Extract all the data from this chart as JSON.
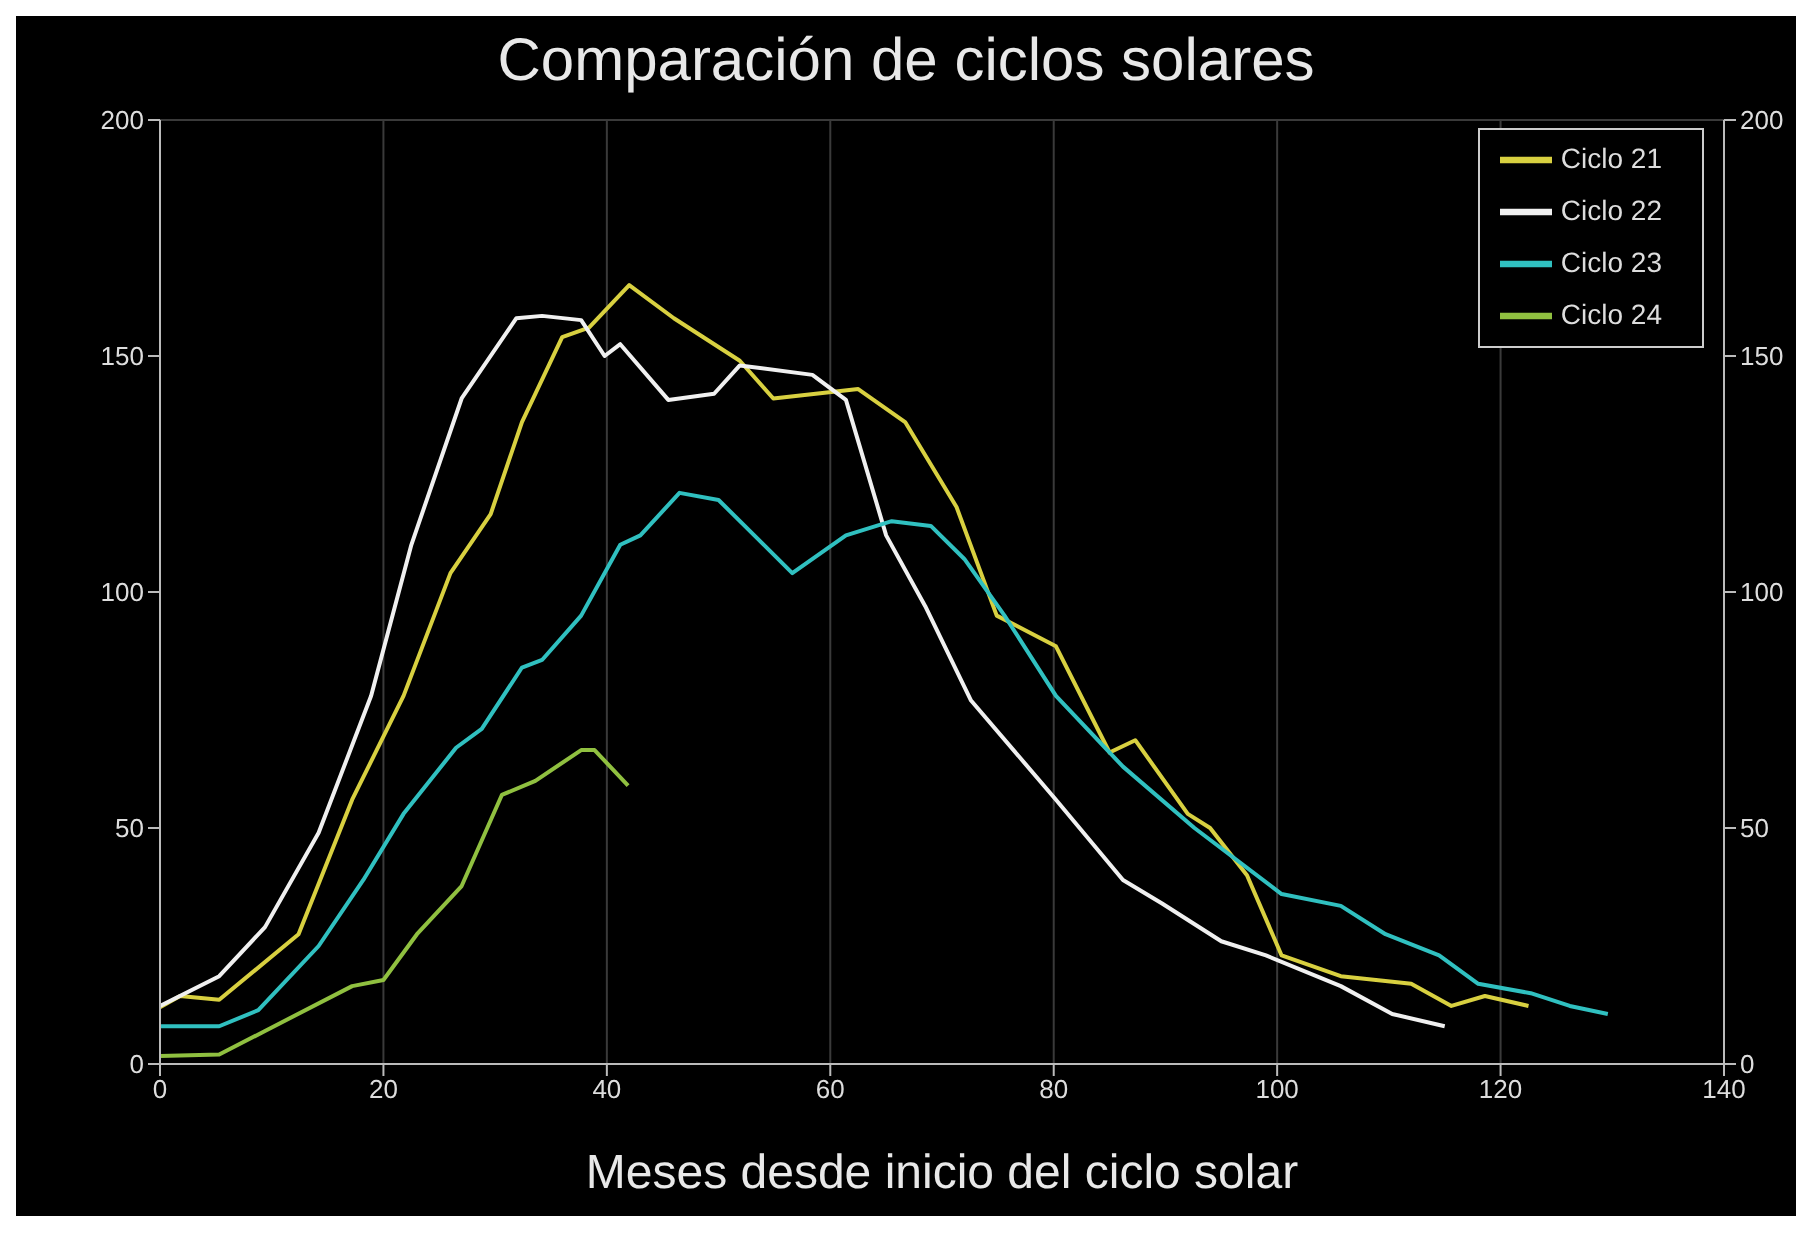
{
  "chart_data": {
    "type": "line",
    "title": "Comparación de ciclos solares",
    "xlabel": "Meses desde inicio del ciclo solar",
    "xlim": [
      0,
      140
    ],
    "xticks": [
      0,
      20,
      40,
      60,
      80,
      100,
      120,
      140
    ],
    "ylim": [
      0,
      200
    ],
    "yticks": [
      0,
      50,
      100,
      150,
      200
    ],
    "y2lim": [
      0,
      200
    ],
    "y2ticks": [
      0,
      50,
      100,
      150,
      200
    ],
    "grid": true,
    "legend": "top right",
    "marker": "none",
    "line_style": "solid",
    "series": [
      {
        "name": "Ciclo 21",
        "color": "#d8d040",
        "x": [
          0,
          1.8,
          5.3,
          12.4,
          17.2,
          21.8,
          26,
          29.6,
          32.4,
          36,
          38.4,
          42,
          46,
          51.9,
          54.9,
          62.5,
          66.7,
          71.3,
          74.9,
          80.2,
          85,
          87.3,
          92,
          94,
          97.3,
          100.4,
          105.7,
          112,
          115.6,
          118.6,
          122.5
        ],
        "values": [
          12,
          14.4,
          13.6,
          27.5,
          56,
          78,
          104,
          116.5,
          136,
          154,
          156,
          165,
          158,
          149,
          141,
          143,
          136,
          118,
          95,
          88.5,
          66,
          68.6,
          53,
          50,
          40,
          23,
          18.6,
          17,
          12.3,
          14.4,
          12.3
        ]
      },
      {
        "name": "Ciclo 22",
        "color": "#f0f0f0",
        "x": [
          0,
          5.3,
          9.4,
          14.2,
          18.9,
          22.5,
          27,
          31.9,
          34.2,
          37.7,
          39.8,
          41.2,
          45.5,
          49.6,
          51.9,
          58.4,
          61.4,
          65,
          68.5,
          72.6,
          80.2,
          86.2,
          89.7,
          95,
          99,
          105.7,
          110.3,
          115
        ],
        "values": [
          12.3,
          18.6,
          29,
          49,
          78,
          110,
          141,
          158,
          158.5,
          157.6,
          150,
          152.5,
          140.7,
          142,
          148,
          146,
          140.7,
          112,
          97,
          77,
          56,
          39,
          34,
          26,
          23,
          16.5,
          10.6,
          8
        ]
      },
      {
        "name": "Ciclo 23",
        "color": "#30c0c0",
        "x": [
          0,
          5.3,
          8.8,
          14.2,
          18.2,
          21.8,
          26.5,
          28.8,
          32.4,
          34.2,
          37.7,
          41.2,
          43,
          46.5,
          50,
          56.6,
          61.4,
          65.5,
          69,
          72,
          75.6,
          80.2,
          86.2,
          92.6,
          100.4,
          105.7,
          109.7,
          114.5,
          118,
          122.7,
          126.2,
          129.6
        ],
        "values": [
          8,
          8,
          11.4,
          25,
          39,
          53,
          67,
          71,
          84,
          85.6,
          95,
          110,
          112,
          121,
          119.5,
          104,
          112,
          115,
          114,
          107,
          95,
          78,
          63,
          50,
          36,
          33.5,
          27.5,
          23,
          17,
          15,
          12.3,
          10.6
        ]
      },
      {
        "name": "Ciclo 24",
        "color": "#90c040",
        "x": [
          0,
          5.3,
          9.4,
          17.2,
          20,
          23,
          27,
          30.6,
          33.6,
          37.7,
          38.9,
          41.9
        ],
        "values": [
          1.7,
          2,
          7,
          16.5,
          17.8,
          27.5,
          37.7,
          57,
          60,
          66.5,
          66.5,
          59
        ]
      }
    ]
  }
}
